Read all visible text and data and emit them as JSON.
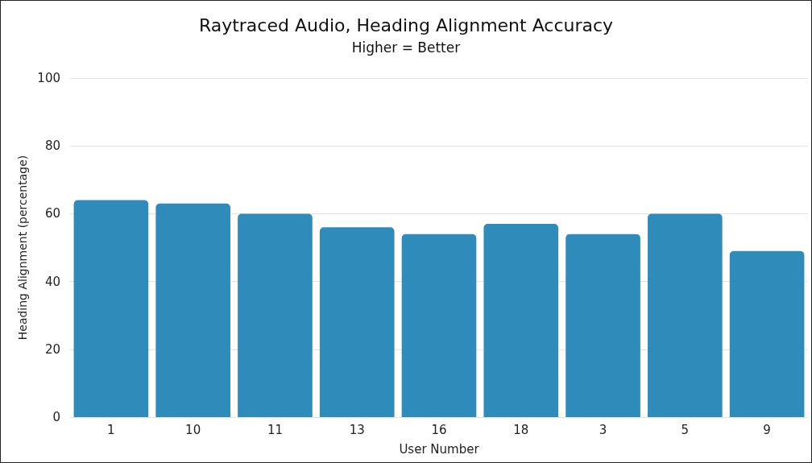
{
  "chart_data": {
    "type": "bar",
    "title": "Raytraced Audio, Heading Alignment Accuracy",
    "subtitle": "Higher = Better",
    "xlabel": "User Number",
    "ylabel": "Heading Alignment (percentage)",
    "categories": [
      "1",
      "10",
      "11",
      "13",
      "16",
      "18",
      "3",
      "5",
      "9"
    ],
    "values": [
      64,
      63,
      60,
      56,
      54,
      57,
      54,
      60,
      49
    ],
    "color": "#2e8bba",
    "ylim": [
      0,
      100
    ],
    "yticks": [
      0,
      20,
      40,
      60,
      80,
      100
    ],
    "grid": "y"
  }
}
